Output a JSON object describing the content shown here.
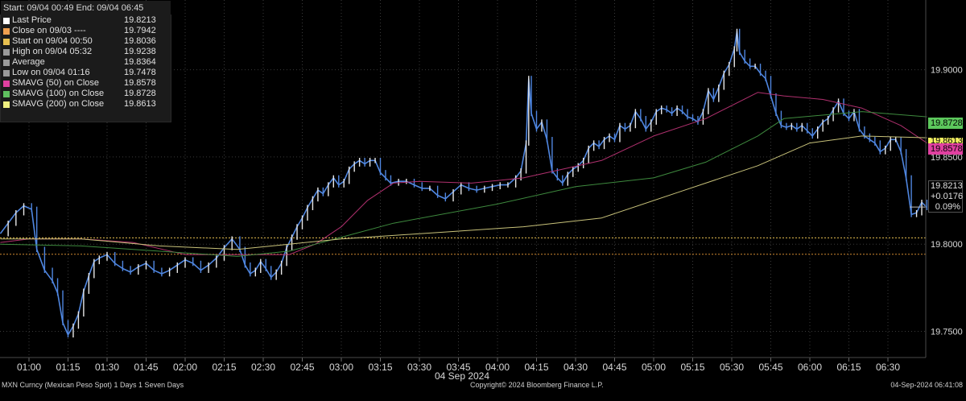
{
  "legend": {
    "header": "Start: 09/04 00:49 End: 09/04 06:45",
    "rows": [
      {
        "label": "Last Price",
        "value": "19.8213",
        "color": "#ffffff"
      },
      {
        "label": "Close on 09/03 ----",
        "value": "19.7942",
        "color": "#f0a050"
      },
      {
        "label": "Start on 09/04 00:50",
        "value": "19.8036",
        "color": "#e8c050"
      },
      {
        "label": "High on 09/04 05:32",
        "value": "19.9238",
        "color": "#9a9a9a"
      },
      {
        "label": "Average",
        "value": "19.8364",
        "color": "#9a9a9a"
      },
      {
        "label": "Low on 09/04 01:16",
        "value": "19.7478",
        "color": "#9a9a9a"
      },
      {
        "label": "SMAVG (50)  on Close",
        "value": "19.8578",
        "color": "#e040a0"
      },
      {
        "label": "SMAVG (100)  on Close",
        "value": "19.8728",
        "color": "#60c060"
      },
      {
        "label": "SMAVG (200)  on Close",
        "value": "19.8613",
        "color": "#f0f080"
      }
    ]
  },
  "right_tags": {
    "sma100": {
      "text": "19.8728",
      "color": "#5cc85c"
    },
    "sma200": {
      "text": "19.8613",
      "color": "#f4f060"
    },
    "sma50": {
      "text": "19.8578",
      "color": "#e040a0"
    },
    "last": {
      "text": "19.8213"
    },
    "change": {
      "text": "+0.0176"
    },
    "pct": {
      "text": "0.09%"
    }
  },
  "footer": {
    "left": "MXN Curncy (Mexican Peso Spot) 1 Days 1 Seven Days",
    "center": "Copyright© 2024 Bloomberg Finance L.P.",
    "right": "04-Sep-2024 06:41:08"
  },
  "chart_data": {
    "type": "line",
    "title": "",
    "xlabel": "04 Sep 2024",
    "ylabel": "",
    "x_tick_labels": [
      "01:00",
      "01:15",
      "01:30",
      "01:45",
      "02:00",
      "02:15",
      "02:30",
      "02:45",
      "03:00",
      "03:15",
      "03:30",
      "03:45",
      "04:00",
      "04:15",
      "04:30",
      "04:45",
      "05:00",
      "05:15",
      "05:30",
      "05:45",
      "06:00",
      "06:15",
      "06:30"
    ],
    "y_tick_labels": [
      "19.9000",
      "19.8500",
      "19.8000",
      "19.7500"
    ],
    "ylim": [
      19.735,
      19.94
    ],
    "x_minutes_range": [
      49,
      405
    ],
    "grid": true,
    "reference_lines": [
      {
        "name": "Close on 09/03",
        "value": 19.7942,
        "color": "#d08a30"
      },
      {
        "name": "Start on 09/04 00:50",
        "value": 19.8036,
        "color": "#e8c050"
      }
    ],
    "series": [
      {
        "name": "Last Price",
        "color": "#4f86e0",
        "points": [
          [
            49,
            19.806
          ],
          [
            52,
            19.812
          ],
          [
            55,
            19.818
          ],
          [
            58,
            19.822
          ],
          [
            61,
            19.82
          ],
          [
            63,
            19.797
          ],
          [
            66,
            19.785
          ],
          [
            69,
            19.779
          ],
          [
            71,
            19.772
          ],
          [
            73,
            19.755
          ],
          [
            75,
            19.748
          ],
          [
            77,
            19.753
          ],
          [
            79,
            19.76
          ],
          [
            81,
            19.773
          ],
          [
            83,
            19.782
          ],
          [
            85,
            19.79
          ],
          [
            87,
            19.792
          ],
          [
            90,
            19.794
          ],
          [
            93,
            19.789
          ],
          [
            96,
            19.786
          ],
          [
            99,
            19.784
          ],
          [
            102,
            19.787
          ],
          [
            105,
            19.789
          ],
          [
            108,
            19.785
          ],
          [
            111,
            19.783
          ],
          [
            114,
            19.785
          ],
          [
            117,
            19.788
          ],
          [
            120,
            19.791
          ],
          [
            123,
            19.789
          ],
          [
            126,
            19.785
          ],
          [
            129,
            19.788
          ],
          [
            132,
            19.792
          ],
          [
            135,
            19.798
          ],
          [
            138,
            19.803
          ],
          [
            141,
            19.797
          ],
          [
            143,
            19.788
          ],
          [
            145,
            19.783
          ],
          [
            147,
            19.785
          ],
          [
            149,
            19.79
          ],
          [
            151,
            19.786
          ],
          [
            153,
            19.781
          ],
          [
            155,
            19.784
          ],
          [
            157,
            19.789
          ],
          [
            159,
            19.798
          ],
          [
            161,
            19.804
          ],
          [
            163,
            19.81
          ],
          [
            165,
            19.815
          ],
          [
            167,
            19.821
          ],
          [
            169,
            19.826
          ],
          [
            171,
            19.831
          ],
          [
            173,
            19.829
          ],
          [
            175,
            19.834
          ],
          [
            177,
            19.838
          ],
          [
            179,
            19.834
          ],
          [
            181,
            19.836
          ],
          [
            183,
            19.843
          ],
          [
            185,
            19.846
          ],
          [
            187,
            19.848
          ],
          [
            189,
            19.846
          ],
          [
            191,
            19.848
          ],
          [
            193,
            19.848
          ],
          [
            195,
            19.841
          ],
          [
            197,
            19.838
          ],
          [
            199,
            19.835
          ],
          [
            202,
            19.836
          ],
          [
            205,
            19.836
          ],
          [
            208,
            19.834
          ],
          [
            211,
            19.832
          ],
          [
            214,
            19.832
          ],
          [
            217,
            19.828
          ],
          [
            220,
            19.826
          ],
          [
            223,
            19.83
          ],
          [
            226,
            19.834
          ],
          [
            229,
            19.832
          ],
          [
            232,
            19.831
          ],
          [
            235,
            19.832
          ],
          [
            238,
            19.833
          ],
          [
            241,
            19.834
          ],
          [
            244,
            19.834
          ],
          [
            247,
            19.838
          ],
          [
            249,
            19.842
          ],
          [
            251,
            19.858
          ],
          [
            252,
            19.895
          ],
          [
            253,
            19.875
          ],
          [
            255,
            19.866
          ],
          [
            257,
            19.87
          ],
          [
            259,
            19.86
          ],
          [
            261,
            19.842
          ],
          [
            263,
            19.838
          ],
          [
            265,
            19.835
          ],
          [
            267,
            19.84
          ],
          [
            269,
            19.843
          ],
          [
            271,
            19.845
          ],
          [
            273,
            19.848
          ],
          [
            275,
            19.855
          ],
          [
            277,
            19.858
          ],
          [
            279,
            19.856
          ],
          [
            281,
            19.86
          ],
          [
            283,
            19.862
          ],
          [
            285,
            19.86
          ],
          [
            287,
            19.868
          ],
          [
            289,
            19.866
          ],
          [
            291,
            19.868
          ],
          [
            293,
            19.876
          ],
          [
            295,
            19.872
          ],
          [
            297,
            19.866
          ],
          [
            299,
            19.87
          ],
          [
            301,
            19.876
          ],
          [
            303,
            19.878
          ],
          [
            305,
            19.877
          ],
          [
            307,
            19.875
          ],
          [
            309,
            19.878
          ],
          [
            311,
            19.876
          ],
          [
            313,
            19.873
          ],
          [
            315,
            19.872
          ],
          [
            317,
            19.87
          ],
          [
            319,
            19.876
          ],
          [
            321,
            19.888
          ],
          [
            323,
            19.883
          ],
          [
            325,
            19.89
          ],
          [
            327,
            19.898
          ],
          [
            329,
            19.903
          ],
          [
            331,
            19.912
          ],
          [
            332,
            19.922
          ],
          [
            333,
            19.91
          ],
          [
            335,
            19.905
          ],
          [
            337,
            19.902
          ],
          [
            339,
            19.902
          ],
          [
            341,
            19.898
          ],
          [
            343,
            19.895
          ],
          [
            345,
            19.885
          ],
          [
            347,
            19.875
          ],
          [
            349,
            19.868
          ],
          [
            351,
            19.867
          ],
          [
            353,
            19.868
          ],
          [
            355,
            19.866
          ],
          [
            357,
            19.868
          ],
          [
            359,
            19.865
          ],
          [
            361,
            19.862
          ],
          [
            363,
            19.866
          ],
          [
            365,
            19.87
          ],
          [
            367,
            19.872
          ],
          [
            369,
            19.877
          ],
          [
            371,
            19.882
          ],
          [
            373,
            19.875
          ],
          [
            375,
            19.872
          ],
          [
            377,
            19.876
          ],
          [
            379,
            19.866
          ],
          [
            381,
            19.862
          ],
          [
            383,
            19.86
          ],
          [
            385,
            19.858
          ],
          [
            387,
            19.853
          ],
          [
            389,
            19.855
          ],
          [
            391,
            19.86
          ],
          [
            393,
            19.86
          ],
          [
            395,
            19.853
          ],
          [
            397,
            19.838
          ],
          [
            399,
            19.817
          ],
          [
            401,
            19.818
          ],
          [
            403,
            19.824
          ],
          [
            405,
            19.821
          ]
        ]
      },
      {
        "name": "SMAVG (50)  on Close",
        "color": "#b0306e",
        "points": [
          [
            49,
            19.801
          ],
          [
            60,
            19.803
          ],
          [
            80,
            19.803
          ],
          [
            100,
            19.801
          ],
          [
            120,
            19.794
          ],
          [
            140,
            19.794
          ],
          [
            160,
            19.794
          ],
          [
            170,
            19.8
          ],
          [
            180,
            19.81
          ],
          [
            190,
            19.825
          ],
          [
            200,
            19.835
          ],
          [
            210,
            19.836
          ],
          [
            230,
            19.835
          ],
          [
            250,
            19.838
          ],
          [
            265,
            19.843
          ],
          [
            280,
            19.848
          ],
          [
            300,
            19.862
          ],
          [
            320,
            19.872
          ],
          [
            340,
            19.887
          ],
          [
            350,
            19.885
          ],
          [
            365,
            19.883
          ],
          [
            380,
            19.878
          ],
          [
            395,
            19.868
          ],
          [
            405,
            19.858
          ]
        ]
      },
      {
        "name": "SMAVG (100)  on Close",
        "color": "#3e8a3e",
        "points": [
          [
            49,
            19.8
          ],
          [
            80,
            19.799
          ],
          [
            100,
            19.797
          ],
          [
            140,
            19.793
          ],
          [
            160,
            19.796
          ],
          [
            180,
            19.804
          ],
          [
            200,
            19.812
          ],
          [
            240,
            19.823
          ],
          [
            270,
            19.833
          ],
          [
            300,
            19.838
          ],
          [
            320,
            19.847
          ],
          [
            340,
            19.862
          ],
          [
            350,
            19.872
          ],
          [
            380,
            19.876
          ],
          [
            405,
            19.873
          ]
        ]
      },
      {
        "name": "SMAVG (200)  on Close",
        "color": "#c8c27a",
        "points": [
          [
            49,
            19.803
          ],
          [
            80,
            19.803
          ],
          [
            110,
            19.799
          ],
          [
            140,
            19.797
          ],
          [
            160,
            19.8
          ],
          [
            180,
            19.803
          ],
          [
            220,
            19.807
          ],
          [
            250,
            19.81
          ],
          [
            280,
            19.815
          ],
          [
            310,
            19.83
          ],
          [
            340,
            19.845
          ],
          [
            360,
            19.858
          ],
          [
            380,
            19.862
          ],
          [
            405,
            19.861
          ]
        ]
      }
    ]
  }
}
